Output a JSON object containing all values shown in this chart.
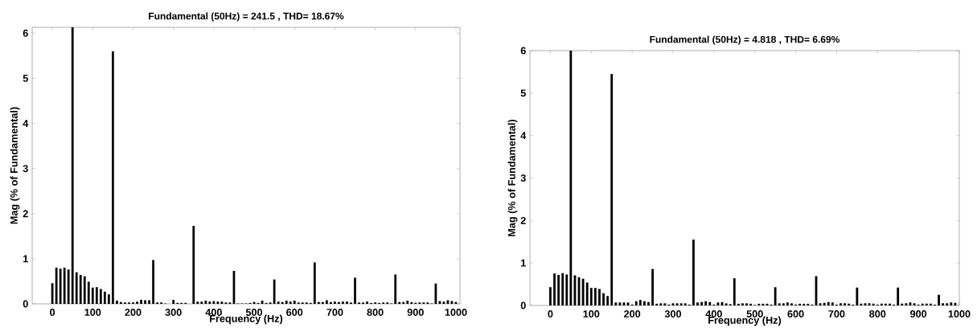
{
  "chart_data": [
    {
      "type": "bar",
      "title": "Fundamental (50Hz) = 241.5 , THD= 18.67%",
      "xlabel": "Frequency (Hz)",
      "ylabel": "Mag (% of Fundamental)",
      "color": "#000000",
      "x": [
        0,
        10,
        20,
        30,
        40,
        50,
        60,
        70,
        80,
        90,
        100,
        110,
        120,
        130,
        140,
        150,
        160,
        170,
        180,
        190,
        200,
        210,
        220,
        230,
        240,
        250,
        260,
        270,
        280,
        290,
        300,
        310,
        320,
        330,
        340,
        350,
        360,
        370,
        380,
        390,
        400,
        410,
        420,
        430,
        440,
        450,
        460,
        470,
        480,
        490,
        500,
        510,
        520,
        530,
        540,
        550,
        560,
        570,
        580,
        590,
        600,
        610,
        620,
        630,
        640,
        650,
        660,
        670,
        680,
        690,
        700,
        710,
        720,
        730,
        740,
        750,
        760,
        770,
        780,
        790,
        800,
        810,
        820,
        830,
        840,
        850,
        860,
        870,
        880,
        890,
        900,
        910,
        920,
        930,
        940,
        950,
        960,
        970,
        980,
        990,
        1000
      ],
      "values": [
        0.46,
        0.8,
        0.78,
        0.8,
        0.76,
        6.13,
        0.7,
        0.64,
        0.61,
        0.49,
        0.36,
        0.37,
        0.33,
        0.27,
        0.21,
        5.6,
        0.07,
        0.04,
        0.03,
        0.03,
        0.03,
        0.05,
        0.09,
        0.08,
        0.08,
        0.97,
        0.03,
        0.03,
        0.01,
        0.0,
        0.09,
        0.02,
        0.02,
        0.02,
        0.0,
        1.73,
        0.05,
        0.05,
        0.07,
        0.05,
        0.06,
        0.05,
        0.05,
        0.03,
        0.03,
        0.73,
        0.01,
        0.01,
        0.01,
        0.02,
        0.04,
        0.02,
        0.07,
        0.02,
        0.03,
        0.54,
        0.05,
        0.04,
        0.07,
        0.05,
        0.07,
        0.03,
        0.03,
        0.03,
        0.02,
        0.92,
        0.04,
        0.04,
        0.08,
        0.04,
        0.05,
        0.04,
        0.05,
        0.05,
        0.03,
        0.58,
        0.03,
        0.03,
        0.05,
        0.02,
        0.03,
        0.02,
        0.03,
        0.03,
        0.01,
        0.65,
        0.04,
        0.04,
        0.07,
        0.04,
        0.02,
        0.03,
        0.03,
        0.03,
        0.01,
        0.45,
        0.06,
        0.05,
        0.08,
        0.06,
        0.04
      ],
      "xlim": [
        -50,
        1010
      ],
      "ylim": [
        0,
        6.13
      ],
      "xticks": [
        0,
        100,
        200,
        300,
        400,
        500,
        600,
        700,
        800,
        900,
        1000
      ],
      "yticks": [
        0,
        1,
        2,
        3,
        4,
        5,
        6
      ]
    },
    {
      "type": "bar",
      "title": "Fundamental (50Hz) = 4.818 , THD= 6.69%",
      "xlabel": "Frequency (Hz)",
      "ylabel": "Mag (% of Fundamental)",
      "color": "#000000",
      "x": [
        0,
        10,
        20,
        30,
        40,
        50,
        60,
        70,
        80,
        90,
        100,
        110,
        120,
        130,
        140,
        150,
        160,
        170,
        180,
        190,
        200,
        210,
        220,
        230,
        240,
        250,
        260,
        270,
        280,
        290,
        300,
        310,
        320,
        330,
        340,
        350,
        360,
        370,
        380,
        390,
        400,
        410,
        420,
        430,
        440,
        450,
        460,
        470,
        480,
        490,
        500,
        510,
        520,
        530,
        540,
        550,
        560,
        570,
        580,
        590,
        600,
        610,
        620,
        630,
        640,
        650,
        660,
        670,
        680,
        690,
        700,
        710,
        720,
        730,
        740,
        750,
        760,
        770,
        780,
        790,
        800,
        810,
        820,
        830,
        840,
        850,
        860,
        870,
        880,
        890,
        900,
        910,
        920,
        930,
        940,
        950,
        960,
        970,
        980,
        990
      ],
      "values": [
        0.43,
        0.75,
        0.72,
        0.76,
        0.73,
        6,
        0.71,
        0.66,
        0.63,
        0.54,
        0.41,
        0.41,
        0.39,
        0.29,
        0.22,
        5.45,
        0.07,
        0.07,
        0.07,
        0.07,
        0.02,
        0.1,
        0.13,
        0.1,
        0.08,
        0.86,
        0.04,
        0.05,
        0.05,
        0.02,
        0.05,
        0.05,
        0.05,
        0.05,
        0.02,
        1.55,
        0.07,
        0.08,
        0.1,
        0.08,
        0.02,
        0.07,
        0.08,
        0.05,
        0.03,
        0.64,
        0.04,
        0.05,
        0.05,
        0.04,
        0.01,
        0.04,
        0.04,
        0.04,
        0.02,
        0.43,
        0.05,
        0.05,
        0.07,
        0.05,
        0.02,
        0.04,
        0.04,
        0.04,
        0.02,
        0.69,
        0.05,
        0.06,
        0.08,
        0.07,
        0.02,
        0.05,
        0.05,
        0.04,
        0.02,
        0.42,
        0.04,
        0.05,
        0.05,
        0.04,
        0.02,
        0.04,
        0.04,
        0.04,
        0.02,
        0.42,
        0.04,
        0.05,
        0.07,
        0.05,
        0.02,
        0.04,
        0.04,
        0.04,
        0.02,
        0.25,
        0.05,
        0.05,
        0.07,
        0.06
      ],
      "xlim": [
        -50,
        1000
      ],
      "ylim": [
        0,
        6
      ],
      "xticks": [
        0,
        100,
        200,
        300,
        400,
        500,
        600,
        700,
        800,
        900,
        1000
      ],
      "yticks": [
        0,
        1,
        2,
        3,
        4,
        5,
        6
      ]
    }
  ]
}
